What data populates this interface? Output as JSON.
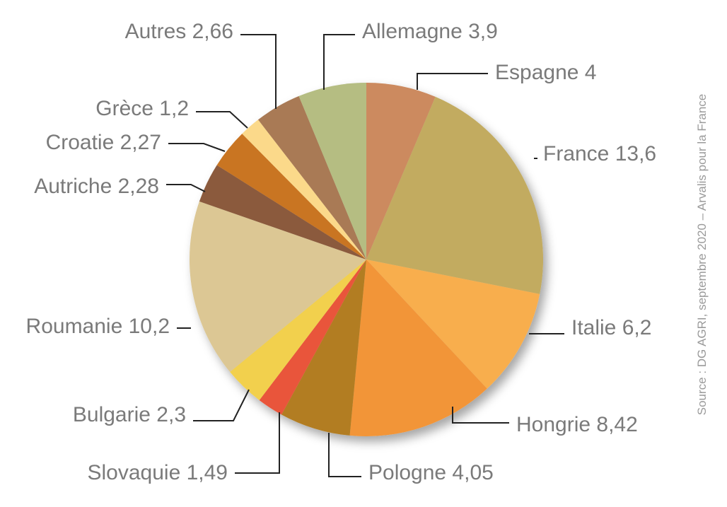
{
  "chart_data": {
    "type": "pie",
    "slices": [
      {
        "label": "Espagne 4",
        "name": "Espagne",
        "value": 4,
        "color": "#CC8A5E"
      },
      {
        "label": "France 13,6",
        "name": "France",
        "value": 13.6,
        "color": "#C2AB60"
      },
      {
        "label": "Italie 6,2",
        "name": "Italie",
        "value": 6.2,
        "color": "#F8AE4E"
      },
      {
        "label": "Hongrie 8,42",
        "name": "Hongrie",
        "value": 8.42,
        "color": "#F29538"
      },
      {
        "label": "Pologne 4,05",
        "name": "Pologne",
        "value": 4.05,
        "color": "#B27D22"
      },
      {
        "label": "Slovaquie 1,49",
        "name": "Slovaquie",
        "value": 1.49,
        "color": "#E9553A"
      },
      {
        "label": "Bulgarie 2,3",
        "name": "Bulgarie",
        "value": 2.3,
        "color": "#F2D04E"
      },
      {
        "label": "Roumanie 10,2",
        "name": "Roumanie",
        "value": 10.2,
        "color": "#DCC794"
      },
      {
        "label": "Autriche 2,28",
        "name": "Autriche",
        "value": 2.28,
        "color": "#8B5A3C"
      },
      {
        "label": "Croatie 2,27",
        "name": "Croatie",
        "value": 2.27,
        "color": "#C97524"
      },
      {
        "label": "Grèce 1,2",
        "name": "Grèce",
        "value": 1.2,
        "color": "#FBD98A"
      },
      {
        "label": "Autres 2,66",
        "name": "Autres",
        "value": 2.66,
        "color": "#A97A55"
      },
      {
        "label": "Allemagne 3,9",
        "name": "Allemagne",
        "value": 3.9,
        "color": "#B5BD82"
      }
    ],
    "start_angle_deg": 0,
    "direction": "clockwise",
    "legend": "none"
  },
  "source": "Source : DG AGRI, septembre 2020 – Arvalis pour la France"
}
